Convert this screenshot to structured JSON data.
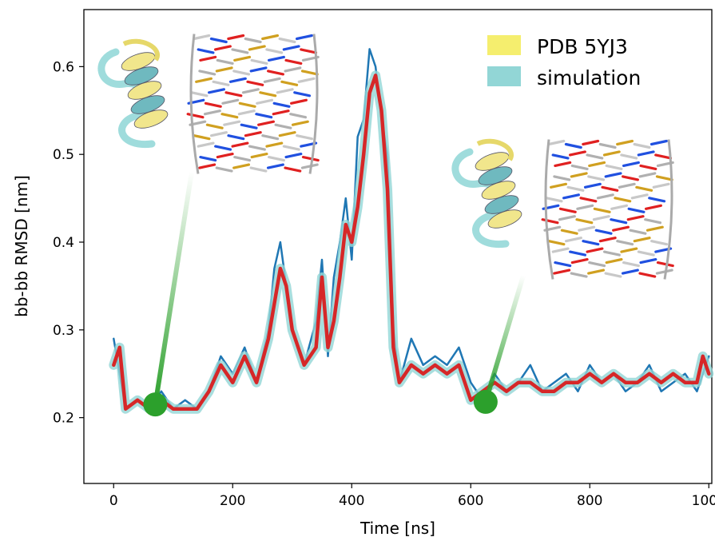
{
  "chart_data": {
    "type": "line",
    "xlabel": "Time [ns]",
    "ylabel": "bb-bb RMSD [nm]",
    "xlim": [
      -50,
      1005
    ],
    "ylim": [
      0.125,
      0.665
    ],
    "xticks": [
      0,
      200,
      400,
      600,
      800,
      1000
    ],
    "yticks": [
      0.2,
      0.3,
      0.4,
      0.5,
      0.6
    ],
    "legend": {
      "placement": "top-right",
      "entries": [
        {
          "label": "PDB 5YJ3",
          "color": "#f5ee6e"
        },
        {
          "label": "simulation",
          "color": "#92d6d6"
        }
      ]
    },
    "series": [
      {
        "color": "#1f77b4",
        "x": [
          0,
          20,
          40,
          60,
          80,
          100,
          120,
          140,
          160,
          180,
          200,
          220,
          240,
          260,
          270,
          280,
          290,
          300,
          320,
          340,
          350,
          360,
          370,
          380,
          390,
          400,
          410,
          420,
          430,
          440,
          450,
          460,
          470,
          480,
          500,
          520,
          540,
          560,
          580,
          600,
          620,
          640,
          660,
          680,
          700,
          720,
          740,
          760,
          780,
          800,
          820,
          840,
          860,
          880,
          900,
          920,
          940,
          960,
          980,
          1000
        ],
        "y": [
          0.29,
          0.21,
          0.22,
          0.21,
          0.23,
          0.21,
          0.22,
          0.21,
          0.23,
          0.27,
          0.25,
          0.28,
          0.24,
          0.3,
          0.37,
          0.4,
          0.35,
          0.3,
          0.26,
          0.31,
          0.38,
          0.27,
          0.36,
          0.4,
          0.45,
          0.38,
          0.52,
          0.54,
          0.62,
          0.6,
          0.54,
          0.5,
          0.3,
          0.24,
          0.29,
          0.26,
          0.27,
          0.26,
          0.28,
          0.24,
          0.22,
          0.25,
          0.23,
          0.24,
          0.26,
          0.23,
          0.24,
          0.25,
          0.23,
          0.26,
          0.24,
          0.25,
          0.23,
          0.24,
          0.26,
          0.23,
          0.24,
          0.25,
          0.23,
          0.27
        ]
      },
      {
        "color": "#d62728",
        "x": [
          0,
          10,
          20,
          40,
          60,
          80,
          100,
          120,
          140,
          160,
          180,
          200,
          220,
          240,
          260,
          270,
          280,
          290,
          300,
          320,
          340,
          350,
          360,
          370,
          380,
          390,
          400,
          410,
          420,
          430,
          440,
          450,
          460,
          470,
          480,
          500,
          520,
          540,
          560,
          580,
          600,
          620,
          640,
          660,
          680,
          700,
          720,
          740,
          760,
          780,
          800,
          820,
          840,
          860,
          880,
          900,
          920,
          940,
          960,
          980,
          990,
          1000
        ],
        "y": [
          0.26,
          0.28,
          0.21,
          0.22,
          0.21,
          0.22,
          0.21,
          0.21,
          0.21,
          0.23,
          0.26,
          0.24,
          0.27,
          0.24,
          0.29,
          0.33,
          0.37,
          0.35,
          0.3,
          0.26,
          0.28,
          0.36,
          0.28,
          0.31,
          0.36,
          0.42,
          0.4,
          0.44,
          0.5,
          0.57,
          0.59,
          0.55,
          0.46,
          0.28,
          0.24,
          0.26,
          0.25,
          0.26,
          0.25,
          0.26,
          0.22,
          0.23,
          0.24,
          0.23,
          0.24,
          0.24,
          0.23,
          0.23,
          0.24,
          0.24,
          0.25,
          0.24,
          0.25,
          0.24,
          0.24,
          0.25,
          0.24,
          0.25,
          0.24,
          0.24,
          0.27,
          0.25
        ]
      }
    ],
    "highlighted_points": [
      {
        "x": 70,
        "y": 0.215,
        "color": "#2ca02c"
      },
      {
        "x": 625,
        "y": 0.218,
        "color": "#2ca02c"
      }
    ]
  }
}
